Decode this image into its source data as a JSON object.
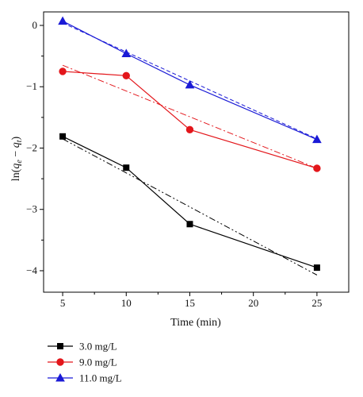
{
  "chart_data": {
    "type": "line",
    "xlabel": "Time (min)",
    "ylabel": "ln(q_e − q_t)",
    "ylabel_parts": {
      "pre": "ln(",
      "q1": "q",
      "s1": "e",
      "mid": " − ",
      "q2": "q",
      "s2": "t",
      "post": ")"
    },
    "xlim": [
      3.5,
      27.5
    ],
    "ylim": [
      -4.35,
      0.22
    ],
    "xticks": [
      5,
      10,
      15,
      20,
      25
    ],
    "xtick_labels": [
      "5",
      "10",
      "15",
      "20",
      "25"
    ],
    "yticks": [
      0,
      -1,
      -2,
      -3,
      -4
    ],
    "ytick_labels": [
      "0",
      "−1",
      "−2",
      "−3",
      "−4"
    ],
    "grid": false,
    "legend_position": "below-left",
    "x": [
      5,
      10,
      15,
      25
    ],
    "series": [
      {
        "name": "3.0 mg/L",
        "values": [
          -1.81,
          -2.32,
          -3.24,
          -3.95
        ],
        "marker": "square",
        "color": "#000000",
        "fit": {
          "x": [
            5,
            25
          ],
          "y": [
            -1.85,
            -4.07
          ]
        },
        "fit_style": "dash-dot-dot"
      },
      {
        "name": "9.0 mg/L",
        "values": [
          -0.75,
          -0.82,
          -1.7,
          -2.33
        ],
        "marker": "circle",
        "color": "#e3161b",
        "fit": {
          "x": [
            5,
            25
          ],
          "y": [
            -0.65,
            -2.33
          ]
        },
        "fit_style": "dash-dot"
      },
      {
        "name": "11.0 mg/L",
        "values": [
          0.07,
          -0.46,
          -0.97,
          -1.86
        ],
        "marker": "triangle",
        "color": "#1a1ad6",
        "fit": {
          "x": [
            5,
            25
          ],
          "y": [
            0.04,
            -1.85
          ]
        },
        "fit_style": "dash"
      }
    ]
  }
}
